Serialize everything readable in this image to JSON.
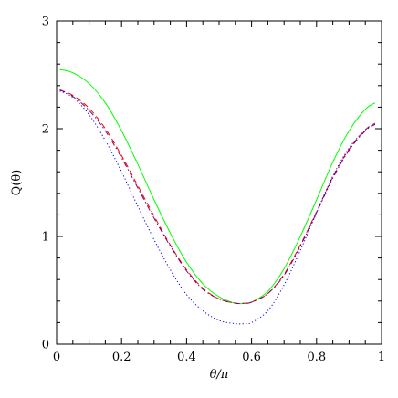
{
  "chart_data": {
    "type": "line",
    "xlabel": "θ/π",
    "ylabel": "Q(θ)",
    "xlim": [
      0,
      1
    ],
    "ylim": [
      0,
      3
    ],
    "x_ticks": [
      0,
      0.2,
      0.4,
      0.6,
      0.8,
      1
    ],
    "x_tick_labels": [
      "0",
      "0.2",
      "0.4",
      "0.6",
      "0.8",
      "1"
    ],
    "y_ticks": [
      0,
      1,
      2,
      3
    ],
    "y_tick_labels": [
      "0",
      "1",
      "2",
      "3"
    ],
    "grid": false,
    "series": [
      {
        "color": "#00ff00",
        "dash": "solid",
        "x": [
          0.01,
          0.05,
          0.1,
          0.15,
          0.2,
          0.25,
          0.3,
          0.35,
          0.4,
          0.45,
          0.5,
          0.55,
          0.58,
          0.6,
          0.65,
          0.7,
          0.75,
          0.8,
          0.85,
          0.9,
          0.95,
          0.98
        ],
        "y": [
          2.55,
          2.52,
          2.42,
          2.24,
          1.98,
          1.67,
          1.34,
          1.03,
          0.76,
          0.56,
          0.44,
          0.38,
          0.38,
          0.39,
          0.49,
          0.7,
          1.0,
          1.34,
          1.69,
          1.98,
          2.18,
          2.24
        ]
      },
      {
        "color": "#ff0000",
        "dash": "dashed",
        "x": [
          0.01,
          0.05,
          0.1,
          0.15,
          0.2,
          0.25,
          0.3,
          0.35,
          0.4,
          0.45,
          0.5,
          0.55,
          0.58,
          0.6,
          0.65,
          0.7,
          0.75,
          0.8,
          0.85,
          0.9,
          0.95,
          0.98
        ],
        "y": [
          2.36,
          2.31,
          2.19,
          2.0,
          1.75,
          1.47,
          1.19,
          0.92,
          0.69,
          0.52,
          0.42,
          0.38,
          0.38,
          0.39,
          0.47,
          0.65,
          0.92,
          1.23,
          1.55,
          1.81,
          1.99,
          2.05
        ]
      },
      {
        "color": "#7a0070",
        "dash": "dashdot",
        "x": [
          0.01,
          0.05,
          0.1,
          0.15,
          0.2,
          0.25,
          0.3,
          0.35,
          0.4,
          0.45,
          0.5,
          0.55,
          0.58,
          0.6,
          0.65,
          0.7,
          0.75,
          0.8,
          0.85,
          0.9,
          0.95,
          0.98
        ],
        "y": [
          2.36,
          2.3,
          2.17,
          1.98,
          1.73,
          1.45,
          1.17,
          0.91,
          0.68,
          0.51,
          0.42,
          0.38,
          0.38,
          0.39,
          0.47,
          0.64,
          0.91,
          1.22,
          1.54,
          1.8,
          1.98,
          2.04
        ]
      },
      {
        "color": "#0000ff",
        "dash": "dotted",
        "x": [
          0.01,
          0.05,
          0.1,
          0.15,
          0.2,
          0.25,
          0.3,
          0.35,
          0.4,
          0.45,
          0.5,
          0.55,
          0.58,
          0.6,
          0.65,
          0.7,
          0.75,
          0.8,
          0.85,
          0.9,
          0.95,
          0.98
        ],
        "y": [
          2.35,
          2.29,
          2.13,
          1.89,
          1.6,
          1.28,
          0.97,
          0.69,
          0.46,
          0.31,
          0.22,
          0.19,
          0.19,
          0.2,
          0.31,
          0.55,
          0.87,
          1.22,
          1.56,
          1.82,
          1.99,
          2.04
        ]
      }
    ]
  }
}
